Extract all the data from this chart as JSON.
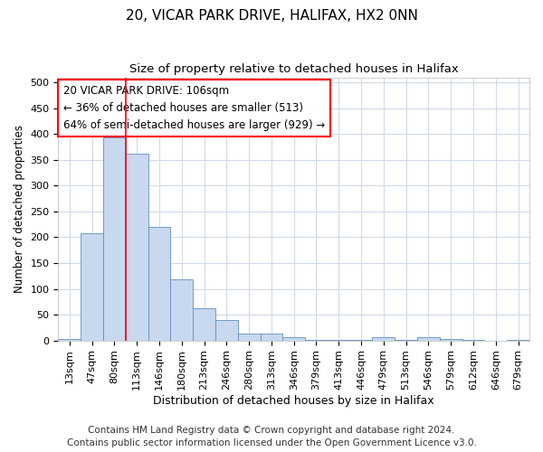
{
  "title1": "20, VICAR PARK DRIVE, HALIFAX, HX2 0NN",
  "title2": "Size of property relative to detached houses in Halifax",
  "xlabel": "Distribution of detached houses by size in Halifax",
  "ylabel": "Number of detached properties",
  "bar_labels": [
    "13sqm",
    "47sqm",
    "80sqm",
    "113sqm",
    "146sqm",
    "180sqm",
    "213sqm",
    "246sqm",
    "280sqm",
    "313sqm",
    "346sqm",
    "379sqm",
    "413sqm",
    "446sqm",
    "479sqm",
    "513sqm",
    "546sqm",
    "579sqm",
    "612sqm",
    "646sqm",
    "679sqm"
  ],
  "bar_values": [
    2,
    207,
    393,
    362,
    220,
    118,
    63,
    40,
    14,
    14,
    6,
    1,
    1,
    1,
    7,
    1,
    6,
    2,
    1,
    0,
    1
  ],
  "bar_color": "#c8d8ee",
  "bar_edge_color": "#6090c0",
  "vline_x_idx": 3,
  "annotation_lines": [
    "20 VICAR PARK DRIVE: 106sqm",
    "← 36% of detached houses are smaller (513)",
    "64% of semi-detached houses are larger (929) →"
  ],
  "footer1": "Contains HM Land Registry data © Crown copyright and database right 2024.",
  "footer2": "Contains public sector information licensed under the Open Government Licence v3.0.",
  "ylim": [
    0,
    510
  ],
  "yticks": [
    0,
    50,
    100,
    150,
    200,
    250,
    300,
    350,
    400,
    450,
    500
  ],
  "bg_color": "#ffffff",
  "plot_bg_color": "#ffffff",
  "grid_color": "#d0daea",
  "title1_fontsize": 11,
  "title2_fontsize": 9.5,
  "ylabel_fontsize": 8.5,
  "xlabel_fontsize": 9,
  "tick_fontsize": 8,
  "annotation_fontsize": 8.5,
  "footer_fontsize": 7.5
}
